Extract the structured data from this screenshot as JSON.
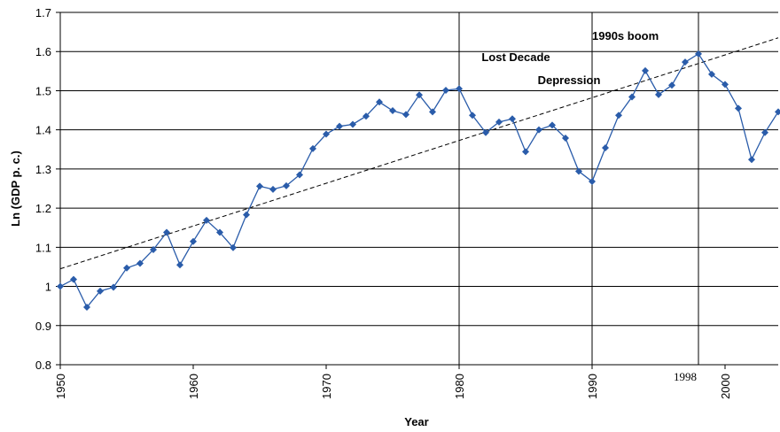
{
  "chart_data": {
    "type": "line",
    "x_label": "Year",
    "y_label": "Ln (GDP p. c.)",
    "x": [
      1950,
      1951,
      1952,
      1953,
      1954,
      1955,
      1956,
      1957,
      1958,
      1959,
      1960,
      1961,
      1962,
      1963,
      1964,
      1965,
      1966,
      1967,
      1968,
      1969,
      1970,
      1971,
      1972,
      1973,
      1974,
      1975,
      1976,
      1977,
      1978,
      1979,
      1980,
      1981,
      1982,
      1983,
      1984,
      1985,
      1986,
      1987,
      1988,
      1989,
      1990,
      1991,
      1992,
      1993,
      1994,
      1995,
      1996,
      1997,
      1998,
      1999,
      2000,
      2001,
      2002,
      2003,
      2004
    ],
    "series": [
      {
        "color": "#2a5caa",
        "values": [
          1.0,
          1.018,
          0.947,
          0.988,
          0.998,
          1.047,
          1.059,
          1.094,
          1.138,
          1.055,
          1.115,
          1.169,
          1.138,
          1.099,
          1.183,
          1.256,
          1.248,
          1.257,
          1.285,
          1.352,
          1.389,
          1.409,
          1.414,
          1.435,
          1.471,
          1.449,
          1.439,
          1.489,
          1.446,
          1.501,
          1.505,
          1.437,
          1.393,
          1.42,
          1.428,
          1.344,
          1.4,
          1.412,
          1.379,
          1.294,
          1.268,
          1.354,
          1.437,
          1.484,
          1.551,
          1.49,
          1.514,
          1.573,
          1.594,
          1.542,
          1.516,
          1.455,
          1.324,
          1.393,
          1.446
        ]
      }
    ],
    "trend": {
      "x": [
        1950,
        2004
      ],
      "values": [
        1.045,
        1.635
      ]
    },
    "vlines": [
      1980,
      1990,
      1998
    ],
    "annotations": [
      {
        "lines": [
          "Lost Decade",
          "Depression"
        ]
      },
      {
        "lines": [
          "1990s boom"
        ]
      }
    ],
    "xlim": [
      1950,
      2004
    ],
    "xticks": [
      1950,
      1960,
      1970,
      1980,
      1990,
      2000
    ],
    "ylim": [
      0.8,
      1.7
    ],
    "yticks": [
      0.8,
      0.9,
      1,
      1.1,
      1.2,
      1.3,
      1.4,
      1.5,
      1.6,
      1.7
    ],
    "grid": true
  }
}
